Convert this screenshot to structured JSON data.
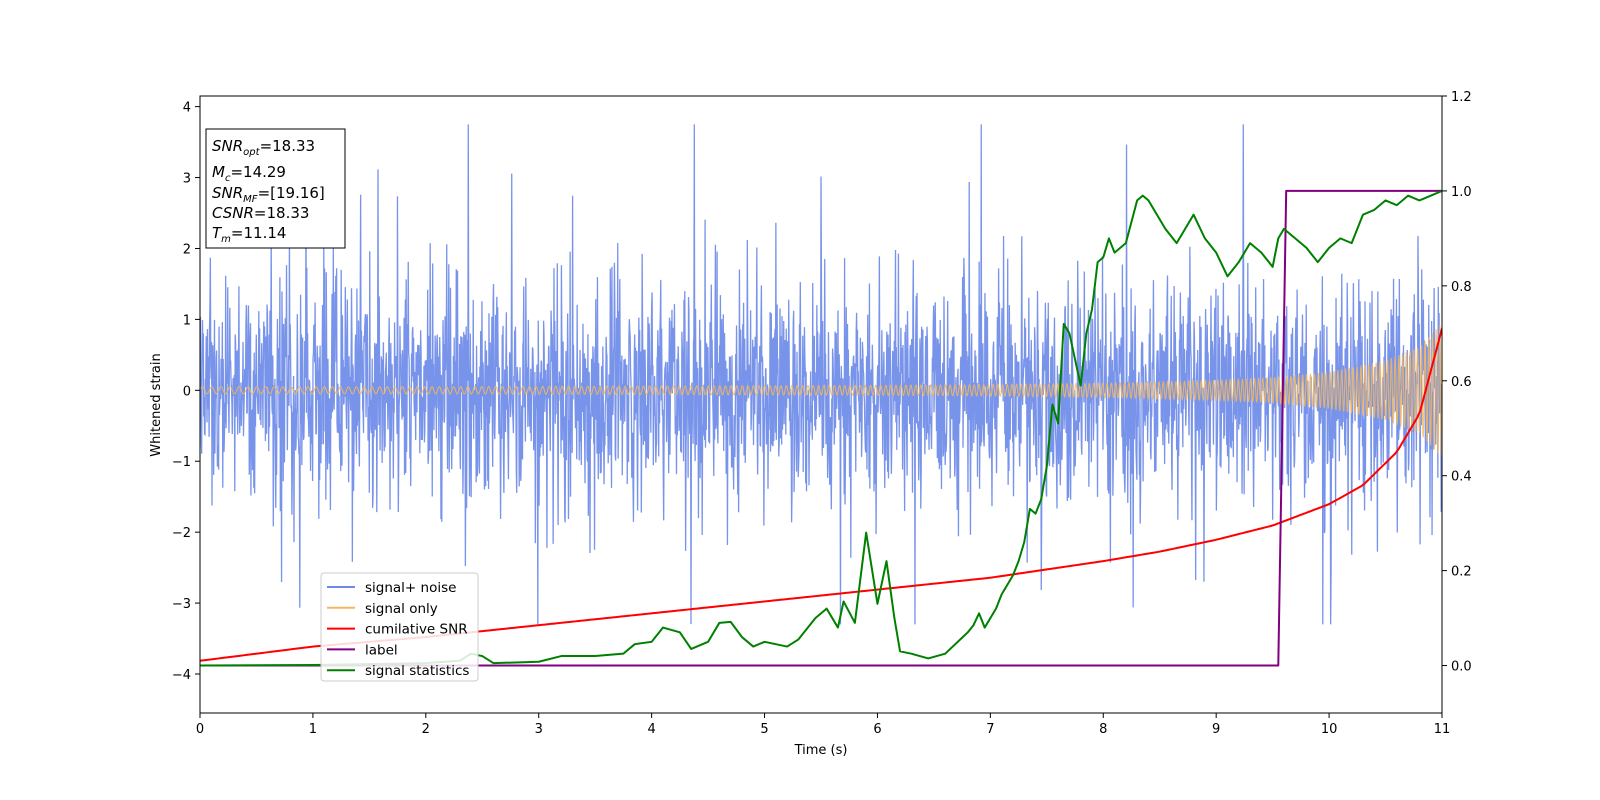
{
  "chart_data": {
    "type": "line",
    "title": "",
    "xlabel": "Time (s)",
    "ylabel": "Whitened strain",
    "xlim": [
      0,
      11
    ],
    "ylim_left": [
      -4.55,
      4.15
    ],
    "ylim_right": [
      -0.1,
      1.2
    ],
    "x_ticks": [
      "0",
      "1",
      "2",
      "3",
      "4",
      "5",
      "6",
      "7",
      "8",
      "9",
      "10",
      "11"
    ],
    "y_left_ticks": [
      "−4",
      "−3",
      "−2",
      "−1",
      "0",
      "1",
      "2",
      "3",
      "4"
    ],
    "y_right_ticks": [
      "0.0",
      "0.2",
      "0.4",
      "0.6",
      "0.8",
      "1.0",
      "1.2"
    ],
    "grid": false,
    "legend_placement": "lower-left",
    "info_box": {
      "snr_opt": "=18.33",
      "mc": "=14.29",
      "snr_mf": "=[19.16]",
      "csnr": "=18.33",
      "tm": "=11.14"
    },
    "series": [
      {
        "name": "signal+ noise",
        "axis": "left",
        "color": "#6d8ae8",
        "description": "whitened noisy strain, amplitude roughly between -3.1 and 3.7 around 0"
      },
      {
        "name": "signal only",
        "axis": "left",
        "color": "#f5b75c",
        "envelope_x": [
          0,
          2,
          4,
          6,
          7,
          8,
          9,
          9.5,
          10,
          10.5,
          10.8,
          11
        ],
        "envelope_amplitude": [
          0.05,
          0.05,
          0.06,
          0.07,
          0.08,
          0.1,
          0.14,
          0.18,
          0.26,
          0.42,
          0.62,
          0.95
        ]
      },
      {
        "name": "cumilative SNR",
        "axis": "right",
        "color": "#ff0000",
        "x": [
          0,
          1,
          2,
          3,
          4,
          5,
          6,
          7,
          8,
          8.5,
          9,
          9.5,
          10,
          10.3,
          10.6,
          10.8,
          11
        ],
        "values": [
          0.01,
          0.04,
          0.06,
          0.085,
          0.11,
          0.135,
          0.16,
          0.185,
          0.22,
          0.24,
          0.265,
          0.295,
          0.34,
          0.38,
          0.45,
          0.53,
          0.71
        ]
      },
      {
        "name": "label",
        "axis": "right",
        "color": "#800080",
        "x": [
          0,
          9.55,
          9.62,
          11
        ],
        "values": [
          0,
          0,
          1,
          1
        ]
      },
      {
        "name": "signal statistics",
        "axis": "right",
        "color": "#008000",
        "x": [
          0,
          1,
          2,
          2.3,
          2.4,
          2.5,
          2.6,
          3.0,
          3.2,
          3.5,
          3.75,
          3.85,
          4.0,
          4.1,
          4.25,
          4.35,
          4.5,
          4.6,
          4.7,
          4.8,
          4.9,
          5.0,
          5.2,
          5.3,
          5.45,
          5.55,
          5.65,
          5.7,
          5.8,
          5.9,
          6.0,
          6.08,
          6.15,
          6.2,
          6.3,
          6.45,
          6.6,
          6.8,
          6.85,
          6.9,
          6.95,
          7.05,
          7.1,
          7.15,
          7.2,
          7.25,
          7.3,
          7.35,
          7.4,
          7.45,
          7.5,
          7.55,
          7.6,
          7.65,
          7.7,
          7.8,
          7.85,
          7.9,
          7.95,
          8.0,
          8.05,
          8.1,
          8.2,
          8.3,
          8.35,
          8.4,
          8.45,
          8.55,
          8.65,
          8.7,
          8.8,
          8.9,
          9.0,
          9.1,
          9.2,
          9.3,
          9.4,
          9.5,
          9.55,
          9.6,
          9.7,
          9.8,
          9.9,
          10.0,
          10.1,
          10.2,
          10.3,
          10.4,
          10.5,
          10.6,
          10.7,
          10.8,
          10.9,
          11.0
        ],
        "values": [
          0.0,
          0.001,
          0.005,
          0.01,
          0.025,
          0.02,
          0.005,
          0.008,
          0.02,
          0.02,
          0.025,
          0.045,
          0.05,
          0.08,
          0.07,
          0.035,
          0.05,
          0.09,
          0.092,
          0.06,
          0.04,
          0.05,
          0.04,
          0.055,
          0.1,
          0.12,
          0.08,
          0.135,
          0.09,
          0.28,
          0.13,
          0.22,
          0.1,
          0.03,
          0.025,
          0.015,
          0.025,
          0.07,
          0.085,
          0.11,
          0.08,
          0.12,
          0.15,
          0.17,
          0.19,
          0.22,
          0.26,
          0.33,
          0.32,
          0.35,
          0.42,
          0.55,
          0.51,
          0.72,
          0.7,
          0.59,
          0.7,
          0.75,
          0.85,
          0.86,
          0.9,
          0.87,
          0.89,
          0.98,
          0.99,
          0.98,
          0.96,
          0.92,
          0.89,
          0.91,
          0.95,
          0.9,
          0.87,
          0.82,
          0.85,
          0.89,
          0.87,
          0.84,
          0.9,
          0.92,
          0.9,
          0.88,
          0.85,
          0.88,
          0.9,
          0.89,
          0.95,
          0.96,
          0.98,
          0.97,
          0.99,
          0.98,
          0.99,
          1.0
        ]
      }
    ]
  }
}
